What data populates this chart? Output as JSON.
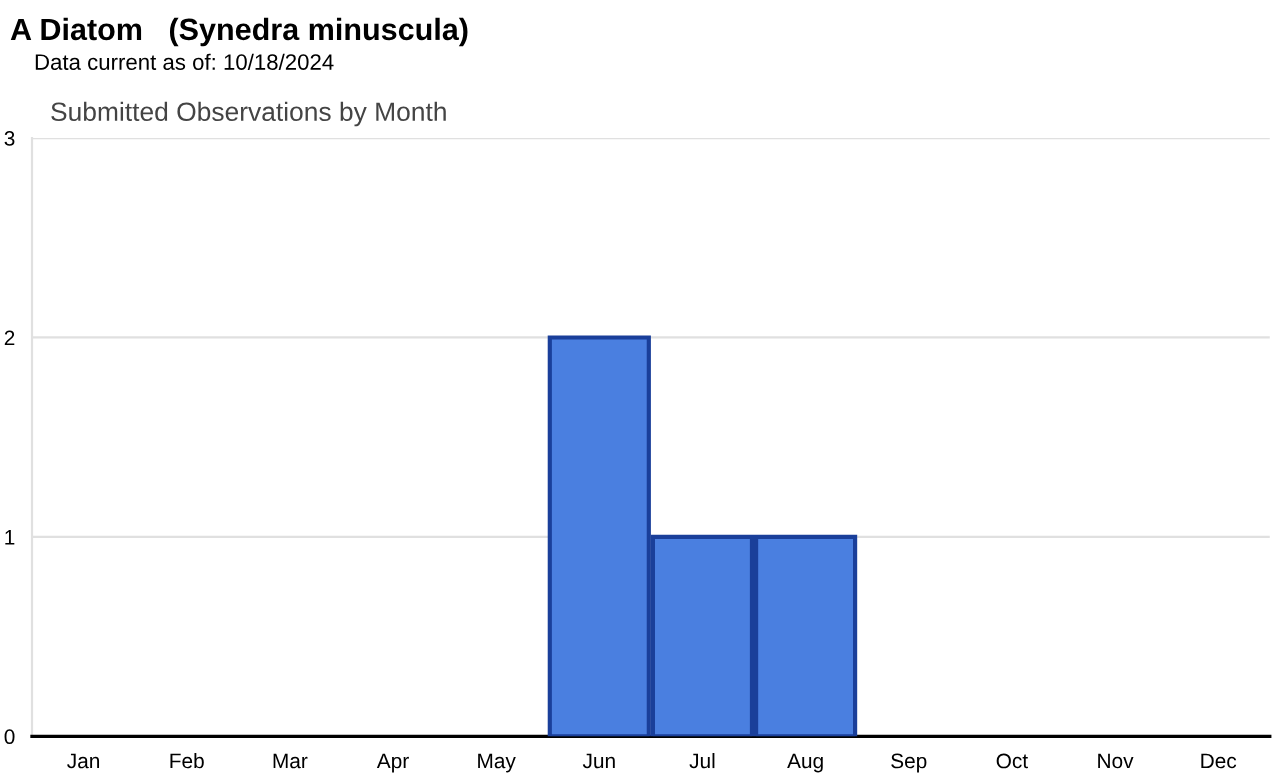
{
  "chart_data": {
    "type": "bar",
    "title": "A Diatom   (Synedra minuscula)",
    "subtitle": "Data current as of: 10/18/2024",
    "annotations": [
      "Submitted Observations by Month"
    ],
    "categories": [
      "Jan",
      "Feb",
      "Mar",
      "Apr",
      "May",
      "Jun",
      "Jul",
      "Aug",
      "Sep",
      "Oct",
      "Nov",
      "Dec"
    ],
    "values": [
      0,
      0,
      0,
      0,
      0,
      2,
      1,
      1,
      0,
      0,
      0,
      0
    ],
    "color": "#4a7fe0",
    "ylim": [
      0,
      3
    ],
    "yticks": [
      0,
      1,
      2,
      3
    ],
    "grid": "y"
  }
}
